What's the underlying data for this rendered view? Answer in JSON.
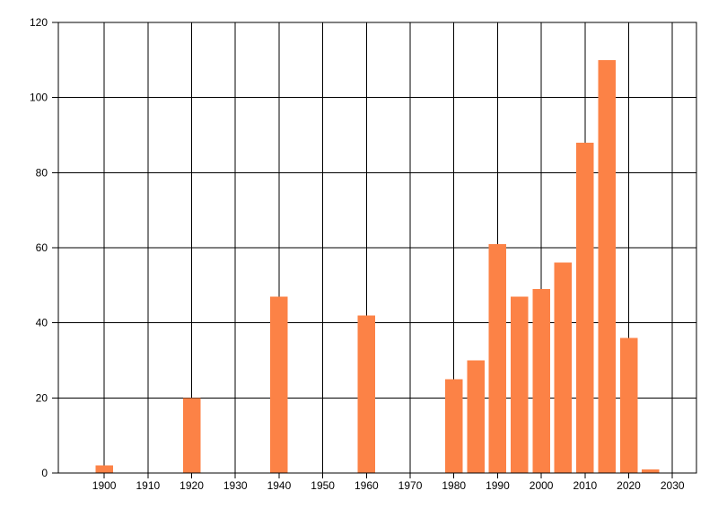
{
  "page": {
    "background_color": "#ffffff"
  },
  "chart_data": {
    "type": "bar",
    "title": "",
    "xlabel": "",
    "ylabel": "",
    "x": [
      1900,
      1920,
      1940,
      1960,
      1980,
      1985,
      1990,
      1995,
      2000,
      2005,
      2010,
      2015,
      2020,
      2025
    ],
    "values": [
      2,
      20,
      47,
      42,
      25,
      30,
      61,
      47,
      49,
      56,
      88,
      110,
      36,
      1
    ],
    "xlim": [
      1889.5,
      2035.5
    ],
    "ylim": [
      0,
      120
    ],
    "x_ticks": [
      1900,
      1910,
      1920,
      1930,
      1940,
      1950,
      1960,
      1970,
      1980,
      1990,
      2000,
      2010,
      2020,
      2030
    ],
    "y_ticks": [
      0,
      20,
      40,
      60,
      80,
      100,
      120
    ],
    "grid": true,
    "grid_color": "#000000",
    "axis_color": "#000000",
    "label_color": "#000000",
    "bar_color": "#FC8246",
    "bar_width_years": 4,
    "legend": "none"
  }
}
